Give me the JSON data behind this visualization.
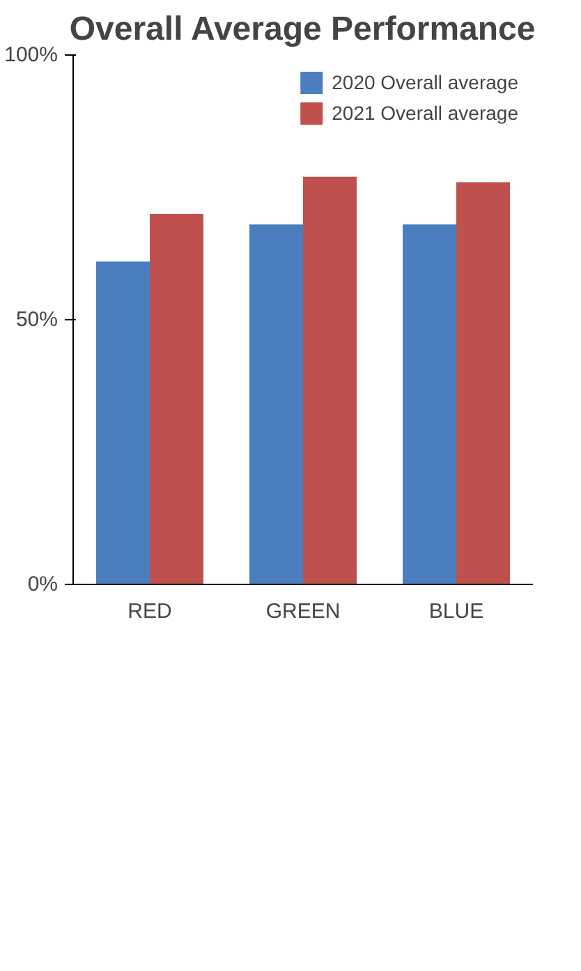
{
  "chart_data": {
    "type": "bar",
    "title": "Overall Average Performance",
    "categories": [
      "RED",
      "GREEN",
      "BLUE"
    ],
    "series": [
      {
        "name": "2020 Overall average",
        "color": "#4a7ebf",
        "values": [
          61,
          68,
          68
        ]
      },
      {
        "name": "2021 Overall average",
        "color": "#c0504d",
        "values": [
          70,
          77,
          76
        ]
      }
    ],
    "ylim": [
      0,
      100
    ],
    "yticks": [
      {
        "value": 0,
        "label": "0%"
      },
      {
        "value": 50,
        "label": "50%"
      },
      {
        "value": 100,
        "label": "100%"
      }
    ],
    "grid": false,
    "legend": "top right"
  }
}
